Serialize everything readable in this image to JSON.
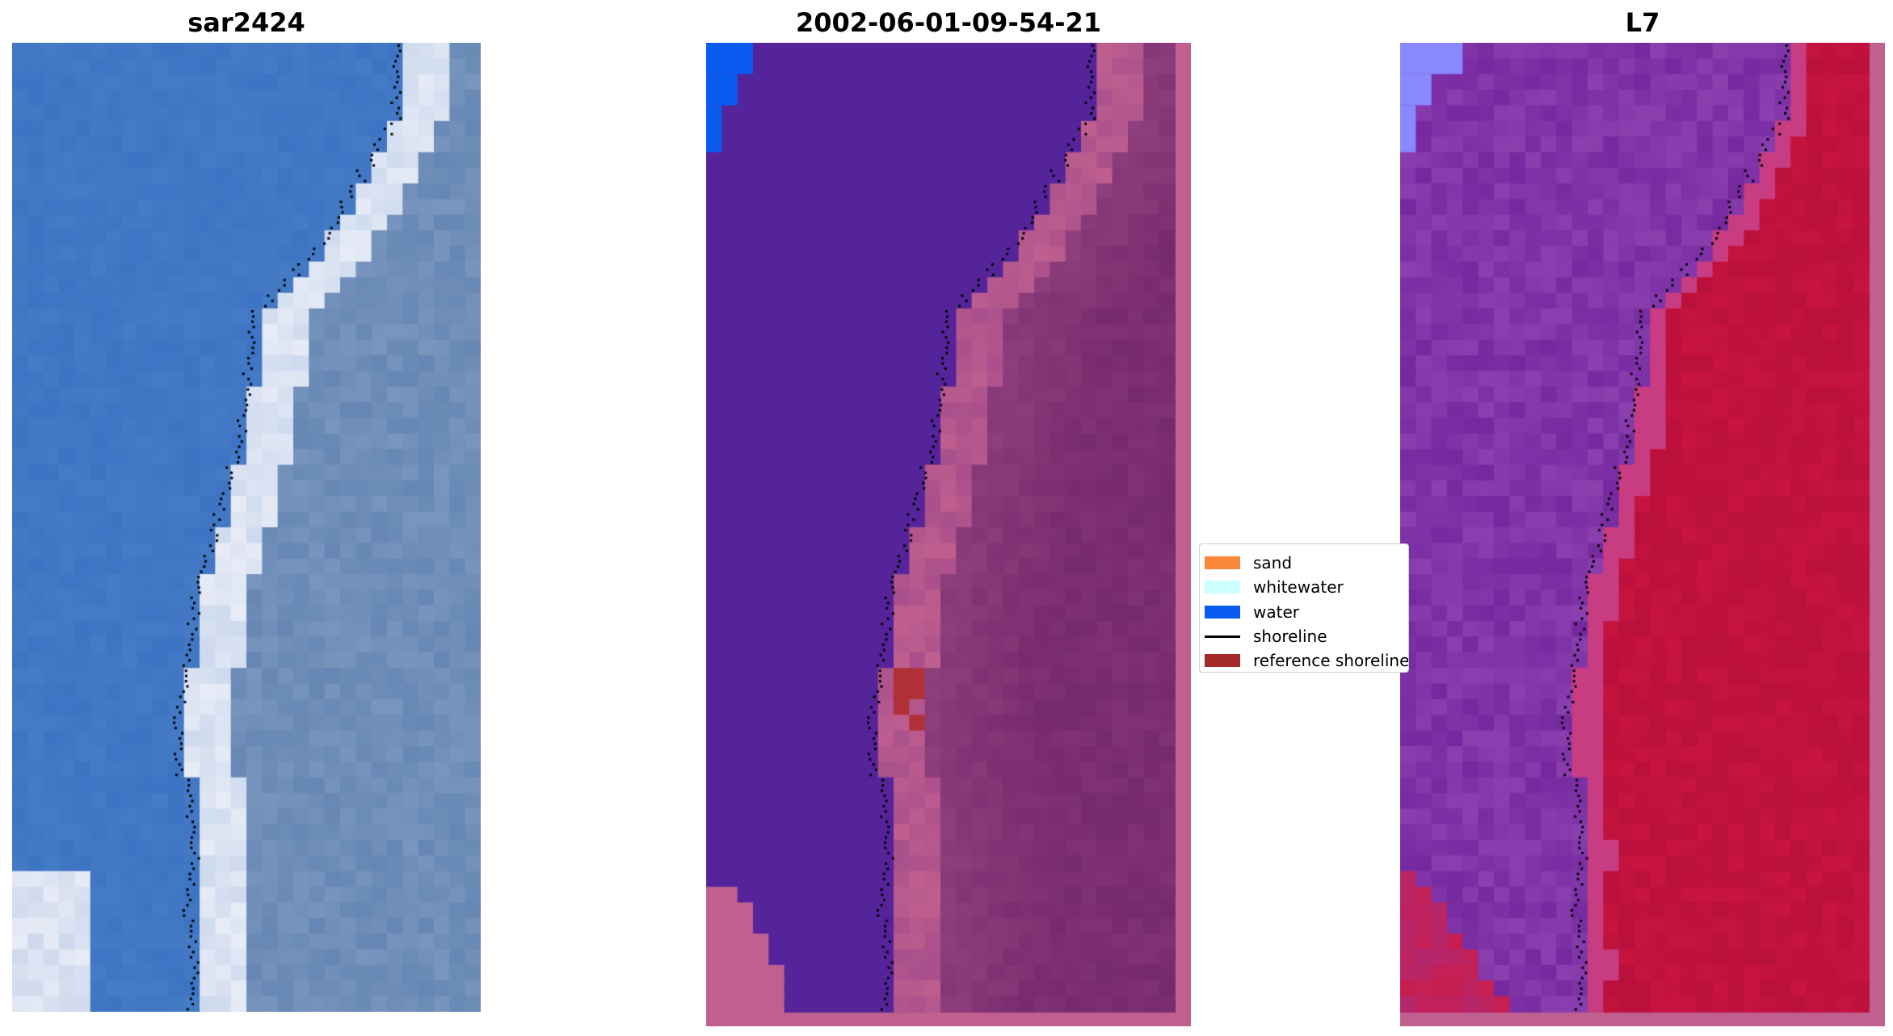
{
  "panels": [
    {
      "title": "sar2424",
      "palette": "rgb"
    },
    {
      "title": "2002-06-01-09-54-21",
      "palette": "classified"
    },
    {
      "title": "L7",
      "palette": "false-color"
    }
  ],
  "legend": {
    "items": [
      {
        "label": "sand",
        "color": "#f7883a",
        "kind": "patch"
      },
      {
        "label": "whitewater",
        "color": "#ccffff",
        "kind": "patch"
      },
      {
        "label": "water",
        "color": "#0a5cf0",
        "kind": "patch"
      },
      {
        "label": "shoreline",
        "color": "#000000",
        "kind": "line"
      },
      {
        "label": "reference shoreline",
        "color": "#a52a2a",
        "kind": "patch"
      }
    ]
  },
  "colors": {
    "water_class": "#55249a",
    "land_overlay": "#c06090",
    "land_dark": "#7a2a6e",
    "deep_water_rgb": "#3d74c4",
    "whitewater_rgb": "#e8ecf7",
    "false_color_water": "#8a3fb0",
    "false_color_land": "#c81440",
    "reference_shoreline": "#b03038"
  }
}
